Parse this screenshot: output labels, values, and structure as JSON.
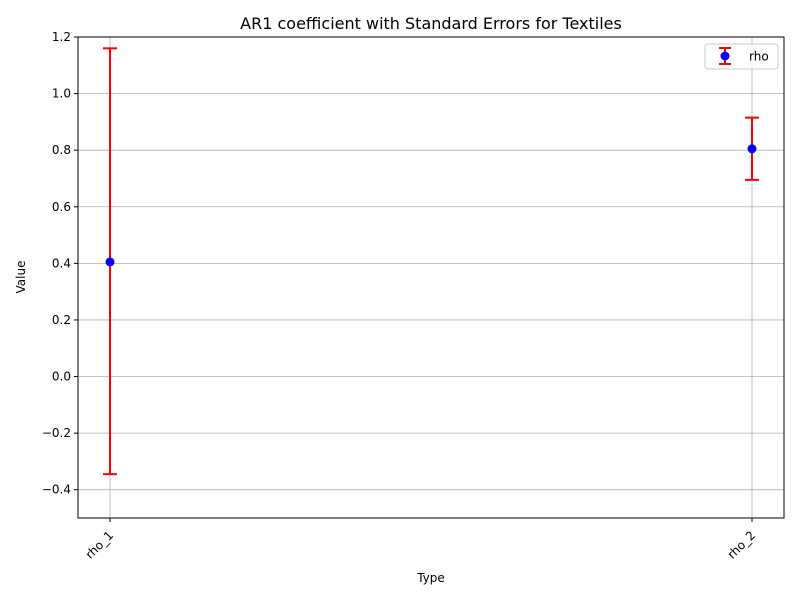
{
  "chart_data": {
    "type": "scatter",
    "title": "AR1 coefficient with Standard Errors for Textiles",
    "xlabel": "Type",
    "ylabel": "Value",
    "categories": [
      "rho_1",
      "rho_2"
    ],
    "series": [
      {
        "name": "rho",
        "values": [
          0.405,
          0.805
        ],
        "err_low": [
          -0.345,
          0.695
        ],
        "err_high": [
          1.16,
          0.915
        ]
      }
    ],
    "ylim": [
      -0.5,
      1.2
    ],
    "yticks": [
      -0.4,
      -0.2,
      0.0,
      0.2,
      0.4,
      0.6,
      0.8,
      1.0,
      1.2
    ],
    "ytick_labels": [
      "−0.4",
      "−0.2",
      "0.0",
      "0.2",
      "0.4",
      "0.6",
      "0.8",
      "1.0",
      "1.2"
    ],
    "grid": true,
    "legend_position": "top-right",
    "colors": {
      "marker": "#0000ff",
      "errorbar": "#ff0000",
      "grid": "#b0b0b0"
    }
  }
}
